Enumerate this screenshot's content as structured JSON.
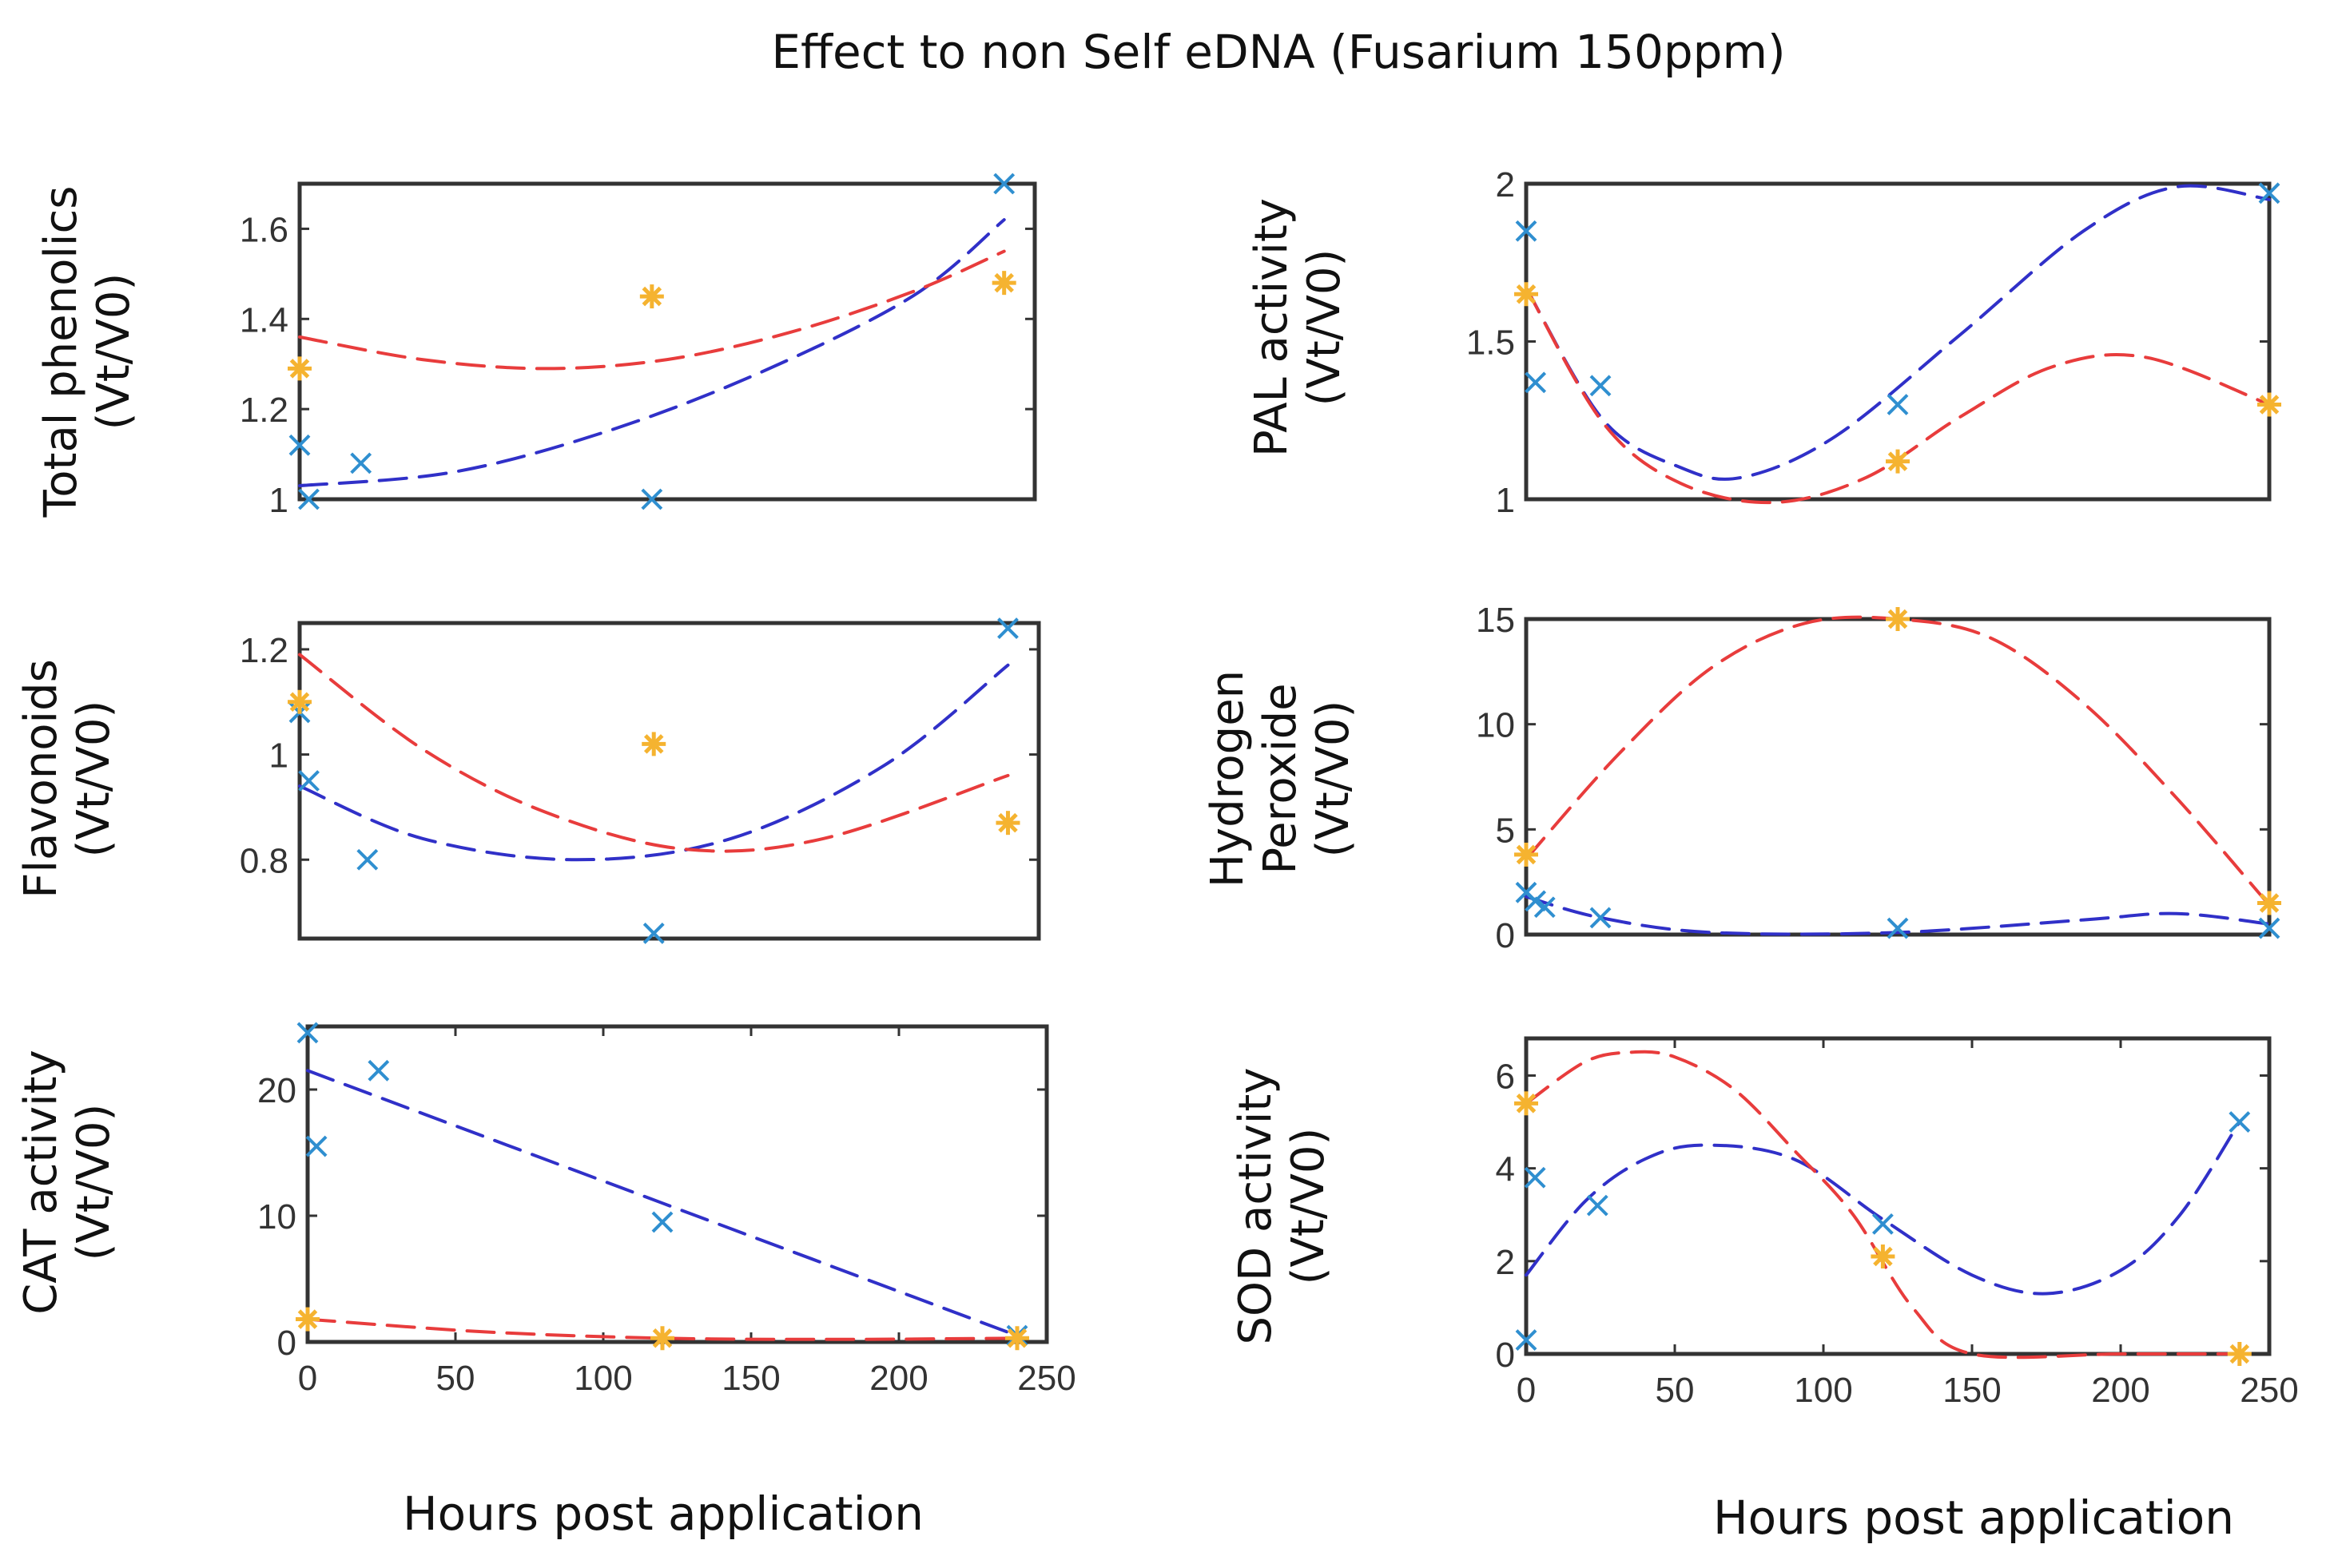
{
  "figure": {
    "title": "Effect to non Self eDNA (Fusarium  150ppm)",
    "xlabel_left": "Hours post application",
    "xlabel_right": "Hours post application"
  },
  "colors": {
    "blue_fit": "#3030c8",
    "red_fit": "#e83c3c",
    "blue_marker": "#2f8fd0",
    "orange_marker": "#f5b330",
    "frame": "#333333"
  },
  "chart_data": [
    {
      "type": "scatter",
      "ylabel": [
        "Total phenolics",
        "(Vt/V0)"
      ],
      "xlim": [
        0,
        240
      ],
      "ylim": [
        1,
        1.7
      ],
      "yticks": [
        1,
        1.2,
        1.4,
        1.6
      ],
      "ytick_labels": [
        "1",
        "1.2",
        "1.4",
        "1.6"
      ],
      "xticks": [],
      "xtick_labels": [],
      "series": [
        {
          "marker": "x",
          "x": [
            0,
            3,
            20,
            115,
            230
          ],
          "y": [
            1.12,
            1.0,
            1.08,
            1.0,
            1.7
          ]
        },
        {
          "marker": "star",
          "x": [
            0,
            115,
            230
          ],
          "y": [
            1.29,
            1.45,
            1.48
          ]
        }
      ],
      "fits": [
        {
          "color": "blue",
          "x": [
            0,
            50,
            100,
            150,
            200,
            230
          ],
          "y": [
            1.03,
            1.06,
            1.15,
            1.28,
            1.45,
            1.62
          ]
        },
        {
          "color": "red",
          "x": [
            0,
            40,
            80,
            120,
            160,
            200,
            230
          ],
          "y": [
            1.36,
            1.31,
            1.29,
            1.31,
            1.37,
            1.46,
            1.55
          ]
        }
      ]
    },
    {
      "type": "scatter",
      "ylabel": [
        "PAL activity",
        "(Vt/V0)"
      ],
      "xlim": [
        0,
        240
      ],
      "ylim": [
        1,
        2
      ],
      "yticks": [
        1,
        1.5,
        2
      ],
      "ytick_labels": [
        "1",
        "1.5",
        "2"
      ],
      "xticks": [],
      "xtick_labels": [],
      "series": [
        {
          "marker": "x",
          "x": [
            0,
            3,
            24,
            120,
            240
          ],
          "y": [
            1.85,
            1.37,
            1.36,
            1.3,
            1.97
          ]
        },
        {
          "marker": "star",
          "x": [
            0,
            120,
            240
          ],
          "y": [
            1.65,
            1.12,
            1.3
          ]
        }
      ],
      "fits": [
        {
          "color": "blue",
          "x": [
            0,
            25,
            50,
            70,
            100,
            140,
            180,
            210,
            240
          ],
          "y": [
            1.67,
            1.25,
            1.1,
            1.07,
            1.2,
            1.52,
            1.85,
            1.99,
            1.95
          ]
        },
        {
          "color": "red",
          "x": [
            0,
            25,
            50,
            80,
            110,
            140,
            170,
            200,
            240
          ],
          "y": [
            1.67,
            1.24,
            1.05,
            0.98,
            1.07,
            1.26,
            1.42,
            1.45,
            1.3
          ]
        }
      ]
    },
    {
      "type": "scatter",
      "ylabel": [
        "Flavonoids",
        "(Vt/V0)"
      ],
      "xlim": [
        0,
        240
      ],
      "ylim": [
        0.65,
        1.25
      ],
      "yticks": [
        0.8,
        1,
        1.2
      ],
      "ytick_labels": [
        "0.8",
        "1",
        "1.2"
      ],
      "xticks": [],
      "xtick_labels": [],
      "series": [
        {
          "marker": "x",
          "x": [
            0,
            3,
            22,
            115,
            230
          ],
          "y": [
            1.08,
            0.95,
            0.8,
            0.66,
            1.24
          ]
        },
        {
          "marker": "star",
          "x": [
            0,
            115,
            230
          ],
          "y": [
            1.1,
            1.02,
            0.87
          ]
        }
      ],
      "fits": [
        {
          "color": "blue",
          "x": [
            0,
            40,
            90,
            140,
            190,
            230
          ],
          "y": [
            0.94,
            0.84,
            0.8,
            0.84,
            0.98,
            1.17
          ]
        },
        {
          "color": "red",
          "x": [
            0,
            40,
            80,
            125,
            170,
            230
          ],
          "y": [
            1.19,
            1.01,
            0.89,
            0.82,
            0.84,
            0.96
          ]
        }
      ]
    },
    {
      "type": "scatter",
      "ylabel": [
        "Hydrogen",
        "Peroxide",
        "(Vt/V0)"
      ],
      "xlim": [
        0,
        240
      ],
      "ylim": [
        0,
        15
      ],
      "yticks": [
        0,
        5,
        10,
        15
      ],
      "ytick_labels": [
        "0",
        "5",
        "10",
        "15"
      ],
      "xticks": [],
      "xtick_labels": [],
      "series": [
        {
          "marker": "x",
          "x": [
            0,
            3,
            6,
            24,
            120,
            240
          ],
          "y": [
            2.0,
            1.6,
            1.3,
            0.8,
            0.3,
            0.3
          ]
        },
        {
          "marker": "star",
          "x": [
            0,
            120,
            240
          ],
          "y": [
            3.8,
            15.0,
            1.5
          ]
        }
      ],
      "fits": [
        {
          "color": "blue",
          "x": [
            0,
            24,
            60,
            120,
            180,
            210,
            240
          ],
          "y": [
            1.8,
            0.8,
            0.1,
            0.1,
            0.7,
            1.0,
            0.5
          ]
        },
        {
          "color": "red",
          "x": [
            0,
            30,
            60,
            90,
            120,
            150,
            180,
            210,
            240
          ],
          "y": [
            3.6,
            8.6,
            12.7,
            14.8,
            15.0,
            14.1,
            11.0,
            6.5,
            1.4
          ]
        }
      ]
    },
    {
      "type": "scatter",
      "ylabel": [
        "CAT activity",
        "(Vt/V0)"
      ],
      "xlim": [
        0,
        250
      ],
      "ylim": [
        0,
        25
      ],
      "yticks": [
        0,
        10,
        20
      ],
      "ytick_labels": [
        "0",
        "10",
        "20"
      ],
      "xticks": [
        0,
        50,
        100,
        150,
        200,
        250
      ],
      "xtick_labels": [
        "0",
        "50",
        "100",
        "150",
        "200",
        "250"
      ],
      "series": [
        {
          "marker": "x",
          "x": [
            0,
            3,
            24,
            120,
            240
          ],
          "y": [
            24.5,
            15.5,
            21.5,
            9.5,
            0.5
          ]
        },
        {
          "marker": "star",
          "x": [
            0,
            120,
            240
          ],
          "y": [
            1.8,
            0.3,
            0.3
          ]
        }
      ],
      "fits": [
        {
          "color": "blue",
          "x": [
            0,
            240
          ],
          "y": [
            21.5,
            0.5
          ]
        },
        {
          "color": "red",
          "x": [
            0,
            60,
            120,
            180,
            240
          ],
          "y": [
            1.8,
            0.8,
            0.3,
            0.2,
            0.3
          ]
        }
      ]
    },
    {
      "type": "scatter",
      "ylabel": [
        "SOD activity",
        "(Vt/V0)"
      ],
      "xlim": [
        0,
        250
      ],
      "ylim": [
        0,
        6.8
      ],
      "yticks": [
        0,
        2,
        4,
        6
      ],
      "ytick_labels": [
        "0",
        "2",
        "4",
        "6"
      ],
      "xticks": [
        0,
        50,
        100,
        150,
        200,
        250
      ],
      "xtick_labels": [
        "0",
        "50",
        "100",
        "150",
        "200",
        "250"
      ],
      "series": [
        {
          "marker": "x",
          "x": [
            0,
            3,
            24,
            120,
            240
          ],
          "y": [
            0.3,
            3.8,
            3.2,
            2.8,
            5.0
          ]
        },
        {
          "marker": "star",
          "x": [
            0,
            120,
            240
          ],
          "y": [
            5.4,
            2.1,
            0.0
          ]
        }
      ],
      "fits": [
        {
          "color": "blue",
          "x": [
            0,
            20,
            40,
            60,
            90,
            120,
            150,
            175,
            200,
            220,
            240
          ],
          "y": [
            1.7,
            3.3,
            4.2,
            4.5,
            4.2,
            2.9,
            1.7,
            1.3,
            1.8,
            3.0,
            5.0
          ]
        },
        {
          "color": "red",
          "x": [
            0,
            20,
            35,
            50,
            70,
            90,
            110,
            130,
            150,
            200,
            240
          ],
          "y": [
            5.4,
            6.3,
            6.5,
            6.4,
            5.7,
            4.4,
            3.0,
            1.0,
            0.0,
            0.0,
            0.0
          ]
        }
      ]
    }
  ]
}
